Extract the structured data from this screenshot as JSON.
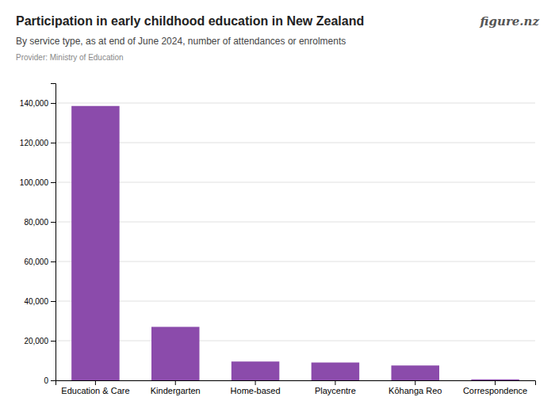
{
  "chart_data": {
    "type": "bar",
    "title": "Participation in early childhood education in New Zealand",
    "subtitle": "By service type, as at end of June 2024, number of attendances or enrolments",
    "annotations": [
      "Provider: Ministry of Education",
      "figure.nz"
    ],
    "categories": [
      "Education & Care",
      "Kindergarten",
      "Home-based",
      "Playcentre",
      "Kōhanga Reo",
      "Correspondence"
    ],
    "values": [
      138500,
      27000,
      9500,
      9000,
      7500,
      500
    ],
    "color": "#8B4BAB",
    "ylim": [
      0,
      150000
    ],
    "yticks": [
      0,
      {
        "value": 20000,
        "label": "20,000"
      },
      {
        "value": 40000,
        "label": "40,000"
      },
      {
        "value": 60000,
        "label": "60,000"
      },
      {
        "value": 80000,
        "label": "80,000"
      },
      {
        "value": 100000,
        "label": "100,000"
      },
      {
        "value": 120000,
        "label": "120,000"
      },
      {
        "value": 140000,
        "label": "140,000"
      }
    ],
    "grid": true
  }
}
